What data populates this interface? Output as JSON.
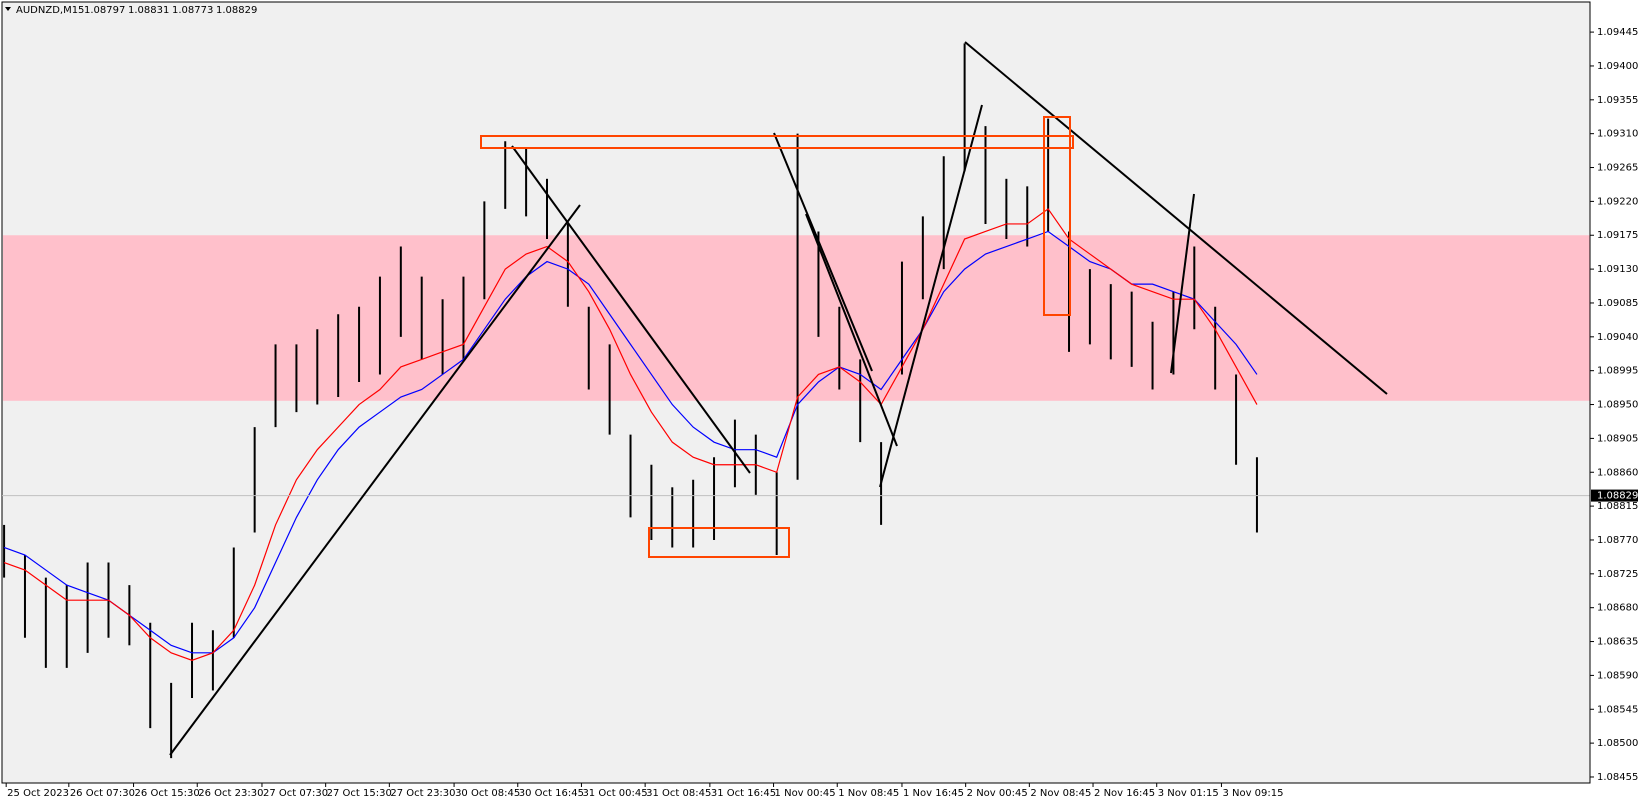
{
  "chart_data": {
    "type": "ohlc",
    "title": "AUDNZD,M15",
    "open": 1.08797,
    "high_price": 1.08831,
    "low_price": 1.08773,
    "close": 1.08829,
    "bar_color": "#000000",
    "zone": [
      1.08955,
      1.09175
    ],
    "zone_color": "#ffc0cb",
    "x": [
      0,
      1,
      2,
      3,
      4,
      5,
      6,
      7,
      8,
      9,
      10,
      11,
      12,
      13,
      14,
      15,
      16,
      17,
      18,
      19,
      20,
      21,
      22,
      23,
      24,
      25,
      26,
      27,
      28,
      29,
      30,
      31,
      32,
      33,
      34,
      35,
      36,
      37,
      38,
      39,
      40,
      41,
      42,
      43,
      44,
      45,
      46,
      47,
      48,
      49,
      50,
      51,
      52,
      53,
      54,
      55,
      56,
      57,
      58,
      59,
      60
    ],
    "high": [
      1.0879,
      1.0875,
      1.0872,
      1.0871,
      1.0874,
      1.0874,
      1.0871,
      1.0866,
      1.0858,
      1.0866,
      1.0865,
      1.0876,
      1.0892,
      1.0903,
      1.0903,
      1.0905,
      1.0907,
      1.0908,
      1.0912,
      1.0916,
      1.0912,
      1.0909,
      1.0912,
      1.0922,
      1.093,
      1.0929,
      1.0925,
      1.0919,
      1.0908,
      1.0903,
      1.0891,
      1.0887,
      1.0884,
      1.0885,
      1.0888,
      1.0893,
      1.0891,
      1.0886,
      1.0931,
      1.0918,
      1.0908,
      1.0901,
      1.089,
      1.0914,
      1.092,
      1.0928,
      1.0943,
      1.0932,
      1.0925,
      1.0924,
      1.0933,
      1.0918,
      1.0913,
      1.0911,
      1.091,
      1.0906,
      1.091,
      1.0916,
      1.0908,
      1.0899,
      1.0888
    ],
    "low": [
      1.0872,
      1.0864,
      1.086,
      1.086,
      1.0862,
      1.0864,
      1.0863,
      1.0852,
      1.0848,
      1.0856,
      1.0857,
      1.0864,
      1.0878,
      1.0892,
      1.0894,
      1.0895,
      1.0896,
      1.0898,
      1.0899,
      1.0904,
      1.0901,
      1.0899,
      1.0901,
      1.0909,
      1.0921,
      1.092,
      1.0917,
      1.0908,
      1.0897,
      1.0891,
      1.088,
      1.0877,
      1.0876,
      1.0876,
      1.0877,
      1.0884,
      1.0883,
      1.0875,
      1.0885,
      1.0904,
      1.0897,
      1.089,
      1.0879,
      1.0899,
      1.0909,
      1.0913,
      1.0926,
      1.0919,
      1.0917,
      1.0916,
      1.0918,
      1.0902,
      1.0903,
      1.0901,
      1.09,
      1.0897,
      1.0899,
      1.0905,
      1.0897,
      1.0887,
      1.0878
    ],
    "series": [
      {
        "color": "#0000ff",
        "values": [
          1.0876,
          1.0875,
          1.0873,
          1.0871,
          1.087,
          1.0869,
          1.0867,
          1.0865,
          1.0863,
          1.0862,
          1.0862,
          1.0864,
          1.0868,
          1.0874,
          1.088,
          1.0885,
          1.0889,
          1.0892,
          1.0894,
          1.0896,
          1.0897,
          1.0899,
          1.0901,
          1.0905,
          1.0909,
          1.0912,
          1.0914,
          1.0913,
          1.0911,
          1.0907,
          1.0903,
          1.0899,
          1.0895,
          1.0892,
          1.089,
          1.0889,
          1.0889,
          1.0888,
          1.0895,
          1.0898,
          1.09,
          1.0899,
          1.0897,
          1.0901,
          1.0905,
          1.091,
          1.0913,
          1.0915,
          1.0916,
          1.0917,
          1.0918,
          1.0916,
          1.0914,
          1.0913,
          1.0911,
          1.0911,
          1.091,
          1.0909,
          1.0906,
          1.0903,
          1.0899
        ]
      },
      {
        "color": "#ff0000",
        "values": [
          1.0874,
          1.0873,
          1.0871,
          1.0869,
          1.0869,
          1.0869,
          1.0867,
          1.0864,
          1.0862,
          1.0861,
          1.0862,
          1.0865,
          1.0871,
          1.0879,
          1.0885,
          1.0889,
          1.0892,
          1.0895,
          1.0897,
          1.09,
          1.0901,
          1.0902,
          1.0903,
          1.0908,
          1.0913,
          1.0915,
          1.0916,
          1.0914,
          1.091,
          1.0905,
          1.0899,
          1.0894,
          1.089,
          1.0888,
          1.0887,
          1.0887,
          1.0887,
          1.0886,
          1.0896,
          1.0899,
          1.09,
          1.0898,
          1.0895,
          1.09,
          1.0905,
          1.0911,
          1.0917,
          1.0918,
          1.0919,
          1.0919,
          1.0921,
          1.0917,
          1.0915,
          1.0913,
          1.0911,
          1.091,
          1.0909,
          1.0909,
          1.0905,
          1.09,
          1.0895
        ]
      }
    ],
    "xlim": [
      -0.1,
      75.95
    ],
    "ylim": [
      1.08447,
      1.09485
    ],
    "xticks": [
      {
        "value": 0.1,
        "label": "25 Oct 2023"
      },
      {
        "value": 3.1,
        "label": "26 Oct 07:30"
      },
      {
        "value": 6.2,
        "label": "26 Oct 15:30"
      },
      {
        "value": 9.25,
        "label": "26 Oct 23:30"
      },
      {
        "value": 12.35,
        "label": "27 Oct 07:30"
      },
      {
        "value": 15.4,
        "label": "27 Oct 15:30"
      },
      {
        "value": 18.45,
        "label": "27 Oct 23:30"
      },
      {
        "value": 21.55,
        "label": "30 Oct 08:45"
      },
      {
        "value": 24.6,
        "label": "30 Oct 16:45"
      },
      {
        "value": 27.65,
        "label": "31 Oct 00:45"
      },
      {
        "value": 30.7,
        "label": "31 Oct 08:45"
      },
      {
        "value": 33.8,
        "label": "31 Oct 16:45"
      },
      {
        "value": 36.85,
        "label": "1 Nov 00:45"
      },
      {
        "value": 39.9,
        "label": "1 Nov 08:45"
      },
      {
        "value": 43,
        "label": "1 Nov 16:45"
      },
      {
        "value": 46.05,
        "label": "2 Nov 00:45"
      },
      {
        "value": 49.1,
        "label": "2 Nov 08:45"
      },
      {
        "value": 52.15,
        "label": "2 Nov 16:45"
      },
      {
        "value": 55.2,
        "label": "3 Nov 01:15"
      },
      {
        "value": 58.3,
        "label": "3 Nov 09:15"
      }
    ],
    "yticks": [
      1.09445,
      {
        "value": 1.094,
        "label": "1.09400"
      },
      1.09355,
      {
        "value": 1.0931,
        "label": "1.09310"
      },
      1.09265,
      {
        "value": 1.0922,
        "label": "1.09220"
      },
      1.09175,
      {
        "value": 1.0913,
        "label": "1.09130"
      },
      1.09085,
      {
        "value": 1.0904,
        "label": "1.09040"
      },
      1.08995,
      {
        "value": 1.0895,
        "label": "1.08950"
      },
      1.08905,
      {
        "value": 1.0886,
        "label": "1.08860"
      },
      1.08815,
      {
        "value": 1.0877,
        "label": "1.08770"
      },
      1.08725,
      {
        "value": 1.0868,
        "label": "1.08680"
      },
      1.08635,
      {
        "value": 1.0859,
        "label": "1.08590"
      },
      1.08545,
      {
        "value": 1.085,
        "label": "1.08500"
      },
      1.08455
    ]
  }
}
